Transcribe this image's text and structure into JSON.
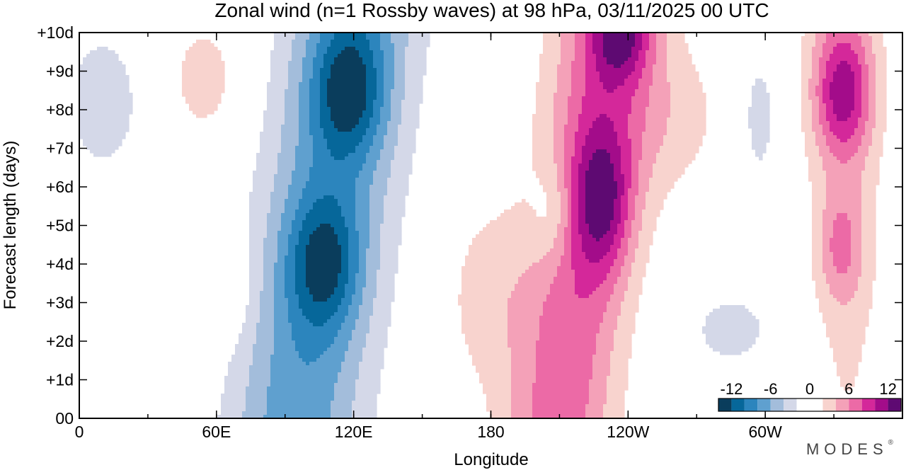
{
  "chart_data": {
    "type": "heatmap",
    "title": "Zonal wind (n=1 Rossby waves) at 98 hPa,  03/11/2025  00 UTC",
    "xlabel": "Longitude",
    "ylabel": "Forecast length (days)",
    "x_range_deg_east": [
      0,
      360
    ],
    "y_range_days": [
      0,
      10
    ],
    "x_ticks": [
      {
        "lon": 0,
        "label": "0"
      },
      {
        "lon": 60,
        "label": "60E"
      },
      {
        "lon": 120,
        "label": "120E"
      },
      {
        "lon": 180,
        "label": "180"
      },
      {
        "lon": 240,
        "label": "120W"
      },
      {
        "lon": 300,
        "label": "60W"
      }
    ],
    "x_minor_step": 30,
    "y_ticks": [
      {
        "day": 0,
        "label": "00"
      },
      {
        "day": 1,
        "label": "+1d"
      },
      {
        "day": 2,
        "label": "+2d"
      },
      {
        "day": 3,
        "label": "+3d"
      },
      {
        "day": 4,
        "label": "+4d"
      },
      {
        "day": 5,
        "label": "+5d"
      },
      {
        "day": 6,
        "label": "+6d"
      },
      {
        "day": 7,
        "label": "+7d"
      },
      {
        "day": 8,
        "label": "+8d"
      },
      {
        "day": 9,
        "label": "+9d"
      },
      {
        "day": 10,
        "label": "+10d"
      }
    ],
    "color_levels": [
      -14,
      -12,
      -10,
      -8,
      -6,
      -4,
      -2,
      0,
      2,
      4,
      6,
      8,
      10,
      12,
      14
    ],
    "colors": [
      "#0a3d5c",
      "#06679a",
      "#2c85bd",
      "#5fa0cf",
      "#a3bddb",
      "#d4d8e8",
      "#ffffff",
      "#ffffff",
      "#f8d3ce",
      "#f4a1b8",
      "#ec6aa6",
      "#d4289a",
      "#a30c8a",
      "#5e0a72"
    ],
    "colorbar_ticks": [
      {
        "value": -12,
        "label": "-12"
      },
      {
        "value": -6,
        "label": "-6"
      },
      {
        "value": 0,
        "label": "0"
      },
      {
        "value": 6,
        "label": "6"
      },
      {
        "value": 12,
        "label": "12"
      }
    ],
    "features": [
      {
        "name": "negative band (easterly anomaly)",
        "lon_center_day0": 95,
        "lon_center_day10": 120,
        "min_value": -14,
        "min_at": [
          {
            "lon": 107,
            "day": 4
          },
          {
            "lon": 118,
            "day": 8.5
          }
        ]
      },
      {
        "name": "positive band (westerly anomaly)",
        "lon_center_day0": 210,
        "lon_center_day10": 230,
        "max_value": 14,
        "max_at": [
          {
            "lon": 229,
            "day": 5.5
          },
          {
            "lon": 237,
            "day": 9.8
          }
        ]
      },
      {
        "name": "positive band east",
        "lon_center": 335,
        "max_value": 12,
        "max_at": [
          {
            "lon": 334,
            "day": 8.5
          }
        ]
      }
    ]
  },
  "branding": {
    "label": "MODES",
    "mark": "®"
  }
}
